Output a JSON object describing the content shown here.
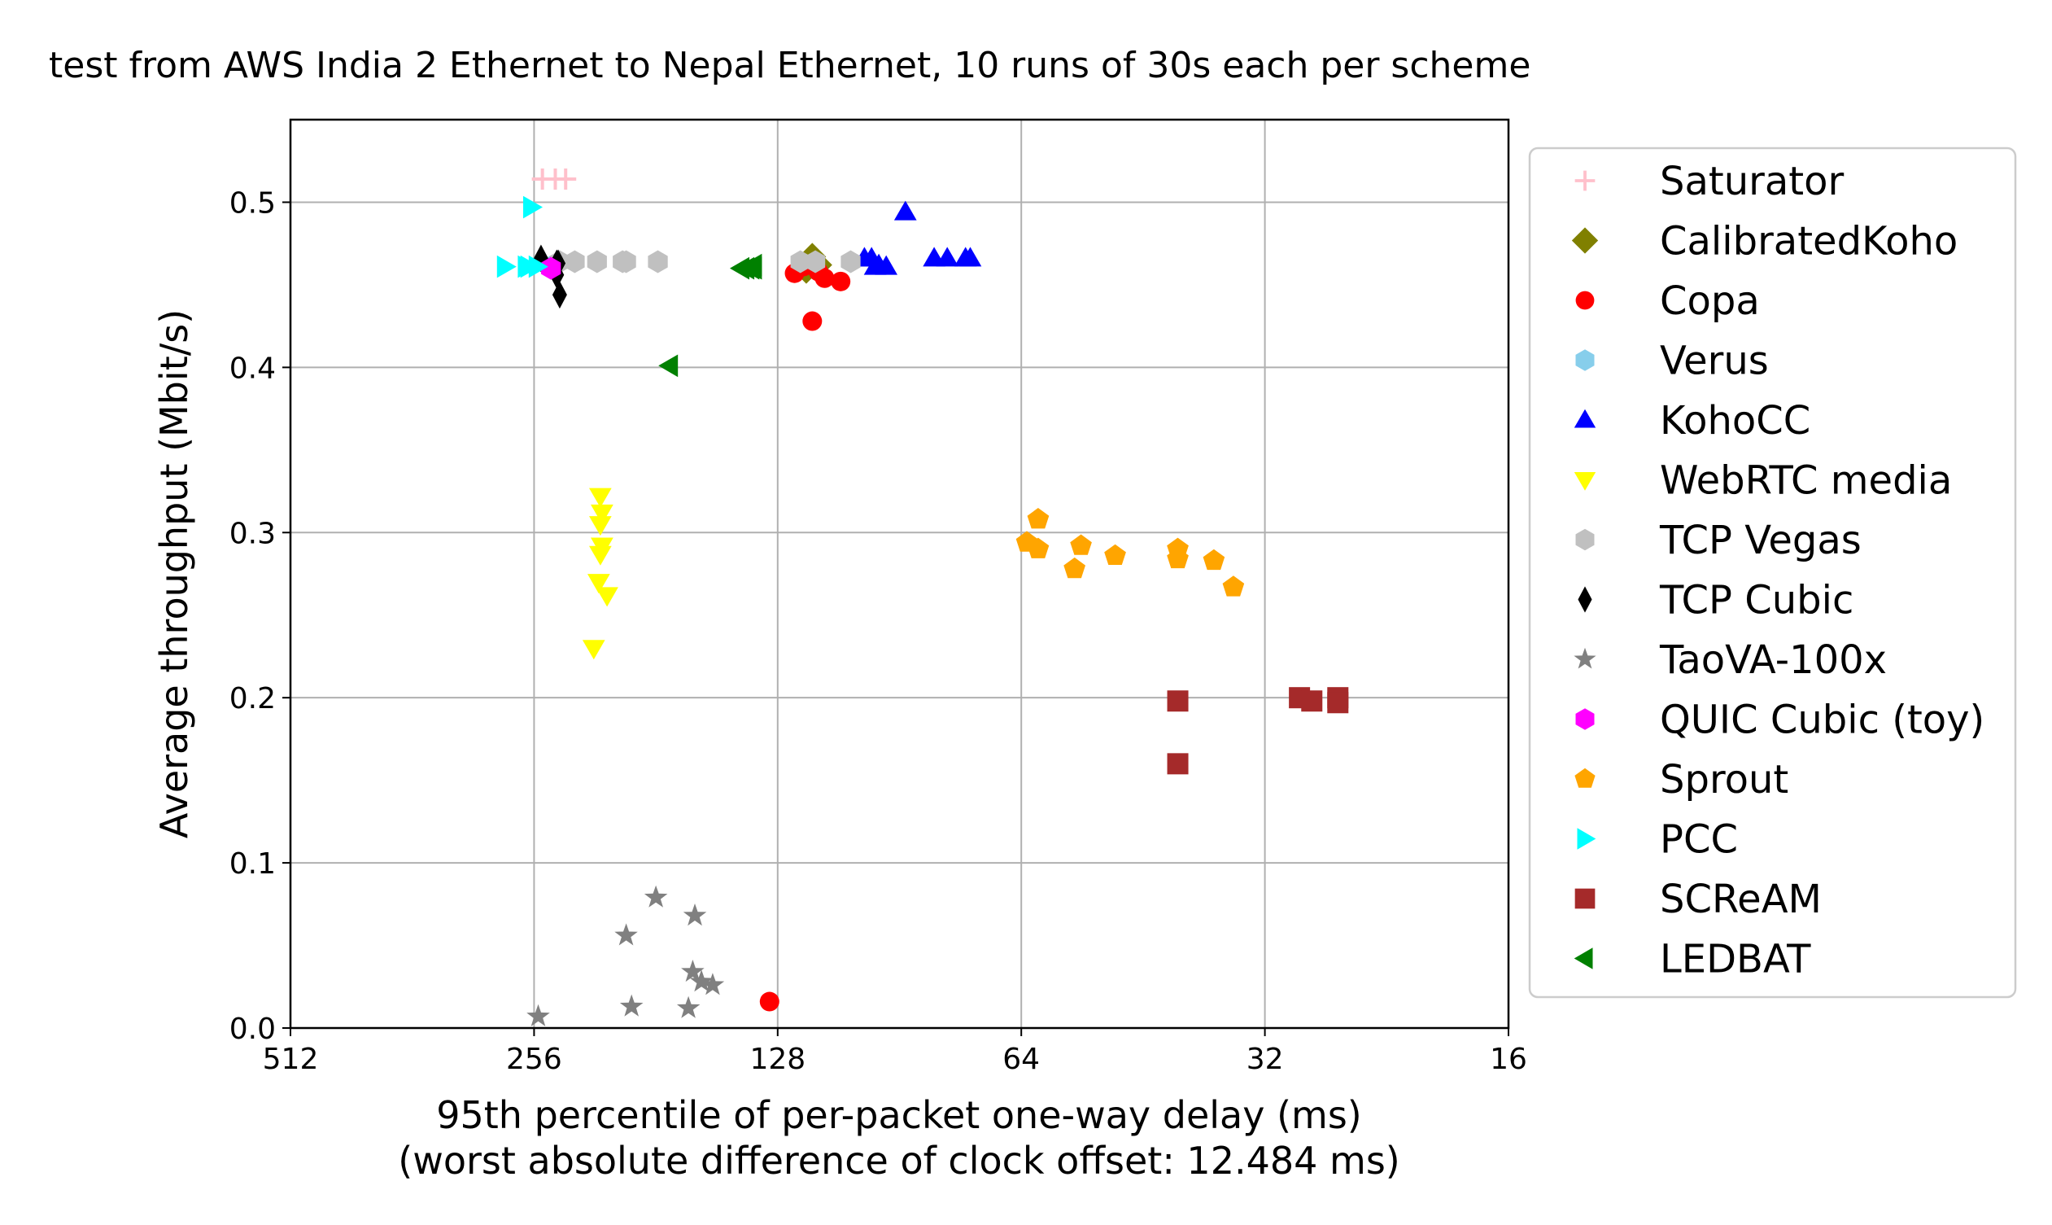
{
  "chart_data": {
    "type": "scatter",
    "title": "test from AWS India 2 Ethernet to Nepal Ethernet, 10 runs of 30s each per scheme",
    "xlabel": "95th percentile of per-packet one-way delay (ms)",
    "xlabel_line2": "(worst absolute difference of clock offset: 12.484 ms)",
    "ylabel": "Average throughput (Mbit/s)",
    "x_scale": "log2",
    "x_inverted": true,
    "xlim": [
      512,
      16
    ],
    "ylim": [
      0.0,
      0.55
    ],
    "x_ticks": [
      512,
      256,
      128,
      64,
      32,
      16
    ],
    "x_tick_labels": [
      "512",
      "256",
      "128",
      "64",
      "32",
      "16"
    ],
    "y_ticks": [
      0.0,
      0.1,
      0.2,
      0.3,
      0.4,
      0.5
    ],
    "y_tick_labels": [
      "0.0",
      "0.1",
      "0.2",
      "0.3",
      "0.4",
      "0.5"
    ],
    "grid": true,
    "legend_position": "outside-right",
    "series": [
      {
        "name": "Saturator",
        "marker": "plus",
        "color": "#ffc0cb",
        "points": [
          [
            250,
            0.514
          ],
          [
            241,
            0.514
          ],
          [
            234,
            0.514
          ]
        ]
      },
      {
        "name": "CalibratedKoho",
        "marker": "diamond",
        "color": "#808000",
        "points": [
          [
            118,
            0.462
          ],
          [
            116,
            0.467
          ],
          [
            114,
            0.462
          ],
          [
            118,
            0.459
          ]
        ]
      },
      {
        "name": "Copa",
        "marker": "circle",
        "color": "#ff0000",
        "points": [
          [
            122,
            0.457
          ],
          [
            119,
            0.461
          ],
          [
            114,
            0.458
          ],
          [
            112,
            0.454
          ],
          [
            107,
            0.452
          ],
          [
            116,
            0.428
          ],
          [
            131,
            0.016
          ]
        ]
      },
      {
        "name": "Verus",
        "marker": "hexagon",
        "color": "#87ceeb",
        "points": [
          [
            244,
            0.461
          ]
        ]
      },
      {
        "name": "KohoCC",
        "marker": "triangle-up",
        "color": "#0000ff",
        "points": [
          [
            100,
            0.466
          ],
          [
            98,
            0.466
          ],
          [
            96,
            0.462
          ],
          [
            97,
            0.461
          ],
          [
            94,
            0.461
          ],
          [
            89,
            0.494
          ],
          [
            82,
            0.466
          ],
          [
            79,
            0.466
          ],
          [
            75,
            0.466
          ],
          [
            74,
            0.466
          ]
        ]
      },
      {
        "name": "WebRTC media",
        "marker": "triangle-down",
        "color": "#ffff00",
        "points": [
          [
            212,
            0.322
          ],
          [
            211,
            0.312
          ],
          [
            212,
            0.305
          ],
          [
            211,
            0.292
          ],
          [
            212,
            0.287
          ],
          [
            213,
            0.27
          ],
          [
            208,
            0.262
          ],
          [
            216,
            0.23
          ]
        ]
      },
      {
        "name": "TCP Vegas",
        "marker": "hexagon",
        "color": "#c0c0c0",
        "points": [
          [
            238,
            0.464
          ],
          [
            228,
            0.464
          ],
          [
            214,
            0.464
          ],
          [
            199,
            0.464
          ],
          [
            197,
            0.464
          ],
          [
            180,
            0.464
          ],
          [
            120,
            0.464
          ],
          [
            115,
            0.464
          ],
          [
            104,
            0.464
          ]
        ]
      },
      {
        "name": "TCP Cubic",
        "marker": "diamond-thin",
        "color": "#000000",
        "points": [
          [
            251,
            0.466
          ],
          [
            240,
            0.463
          ],
          [
            239,
            0.463
          ],
          [
            240,
            0.456
          ],
          [
            238,
            0.444
          ]
        ]
      },
      {
        "name": "TaoVA-100x",
        "marker": "star",
        "color": "#808080",
        "points": [
          [
            197,
            0.056
          ],
          [
            181,
            0.079
          ],
          [
            162,
            0.068
          ],
          [
            163,
            0.034
          ],
          [
            159,
            0.028
          ],
          [
            154,
            0.026
          ],
          [
            194,
            0.013
          ],
          [
            165,
            0.012
          ],
          [
            253,
            0.007
          ]
        ]
      },
      {
        "name": "QUIC Cubic (toy)",
        "marker": "hexagon",
        "color": "#ff00ff",
        "points": [
          [
            244,
            0.46
          ]
        ]
      },
      {
        "name": "Sprout",
        "marker": "pentagon",
        "color": "#ffa500",
        "points": [
          [
            61,
            0.308
          ],
          [
            63,
            0.294
          ],
          [
            61,
            0.29
          ],
          [
            54,
            0.292
          ],
          [
            55,
            0.278
          ],
          [
            49,
            0.286
          ],
          [
            41,
            0.29
          ],
          [
            41,
            0.284
          ],
          [
            37,
            0.283
          ],
          [
            35,
            0.267
          ]
        ]
      },
      {
        "name": "PCC",
        "marker": "triangle-right",
        "color": "#00ffff",
        "points": [
          [
            258,
            0.497
          ],
          [
            278,
            0.461
          ],
          [
            260,
            0.461
          ],
          [
            262,
            0.461
          ],
          [
            254,
            0.461
          ]
        ]
      },
      {
        "name": "SCReAM",
        "marker": "square",
        "color": "#a52a2a",
        "points": [
          [
            41,
            0.198
          ],
          [
            29,
            0.2
          ],
          [
            28,
            0.198
          ],
          [
            26,
            0.2
          ],
          [
            26,
            0.197
          ],
          [
            41,
            0.16
          ]
        ]
      },
      {
        "name": "LEDBAT",
        "marker": "triangle-left",
        "color": "#008000",
        "points": [
          [
            142,
            0.46
          ],
          [
            140,
            0.46
          ],
          [
            138,
            0.46
          ],
          [
            137,
            0.46
          ],
          [
            137,
            0.462
          ],
          [
            174,
            0.401
          ]
        ]
      }
    ]
  }
}
